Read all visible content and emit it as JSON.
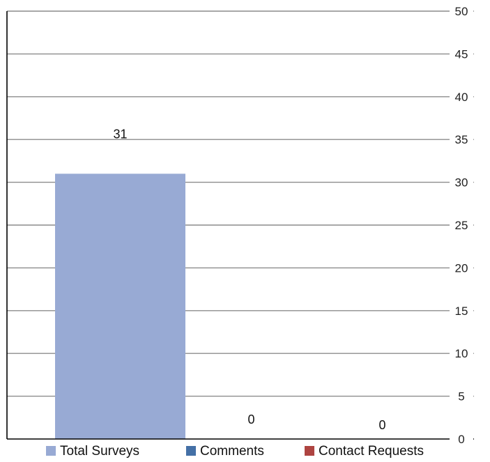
{
  "chart_data": {
    "type": "bar",
    "title": "",
    "xlabel": "",
    "ylabel": "",
    "ylim": [
      0,
      50
    ],
    "y_ticks": [
      "0",
      "5",
      "10",
      "15",
      "20",
      "25",
      "30",
      "35",
      "40",
      "45",
      "50"
    ],
    "grid": true,
    "y_axis_side": "right",
    "legend_placement": "bottom",
    "series": [
      {
        "name": "Total Surveys",
        "value": 31,
        "label": "31",
        "color": "#98AAD4"
      },
      {
        "name": "Comments",
        "value": 0,
        "label": "0",
        "color": "#4470A6"
      },
      {
        "name": "Contact Requests",
        "value": 0,
        "label": "0",
        "color": "#AE4441"
      }
    ]
  }
}
